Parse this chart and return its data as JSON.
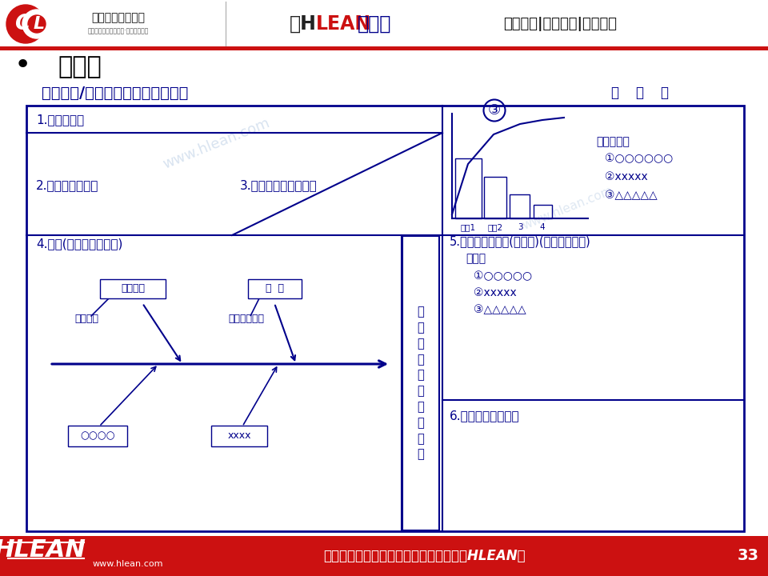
{
  "bg_color": "#ffffff",
  "red_color": "#cc1111",
  "dark_blue": "#00008B",
  "bullet_title": "回顾书",
  "sub_heading": "年度全年/上半年、季度反省回顾书",
  "date_label": "年    月    日",
  "cell1": "1.目标名称：",
  "cell2": "2.针对目标之结果",
  "cell3": "3.方策管理项目的结果",
  "cell3_circ": "③",
  "cell4": "4.解析(要因分析的验证)",
  "cell5": "5.反应至下一年度(下半期)(对策案的拟定)",
  "cell5b": "对策案",
  "cell5c1": "①○○○○○",
  "cell5c2": "②xxxxx",
  "cell5c3": "③△△△△△",
  "cell6": "6.对策案实现的要求",
  "right_label1": "提出要因：",
  "right_label2": "①○○○○○○",
  "right_label3": "②xxxxx",
  "right_label4": "③△△△△△",
  "fishbone_box1_label": "支援体制",
  "fishbone_box2_label": "方  策",
  "fishbone_sub1": "工时不足",
  "fishbone_sub2": "现状把握不足",
  "fishbone_bot1": "○○○○",
  "fishbone_bot2": "xxxx",
  "vertical_text": "树\n脂\n成\n形\n不\n良\n率\n之\n未\n达",
  "xaxis_labels": [
    "要因1",
    "要因2",
    "3",
    "4"
  ],
  "footer_text": "做行业标杆，找精弘益；要幸福高效，用HLEAN！",
  "page_num": "33",
  "watermark": "www.hlean.com",
  "company_name": "精益生产促进中心",
  "company_sub": "中国先进精益管理体系·智能制造系统",
  "header_mid": "【HLEAN学堂】",
  "header_right": "精益生产|智能制造|管理前沿"
}
